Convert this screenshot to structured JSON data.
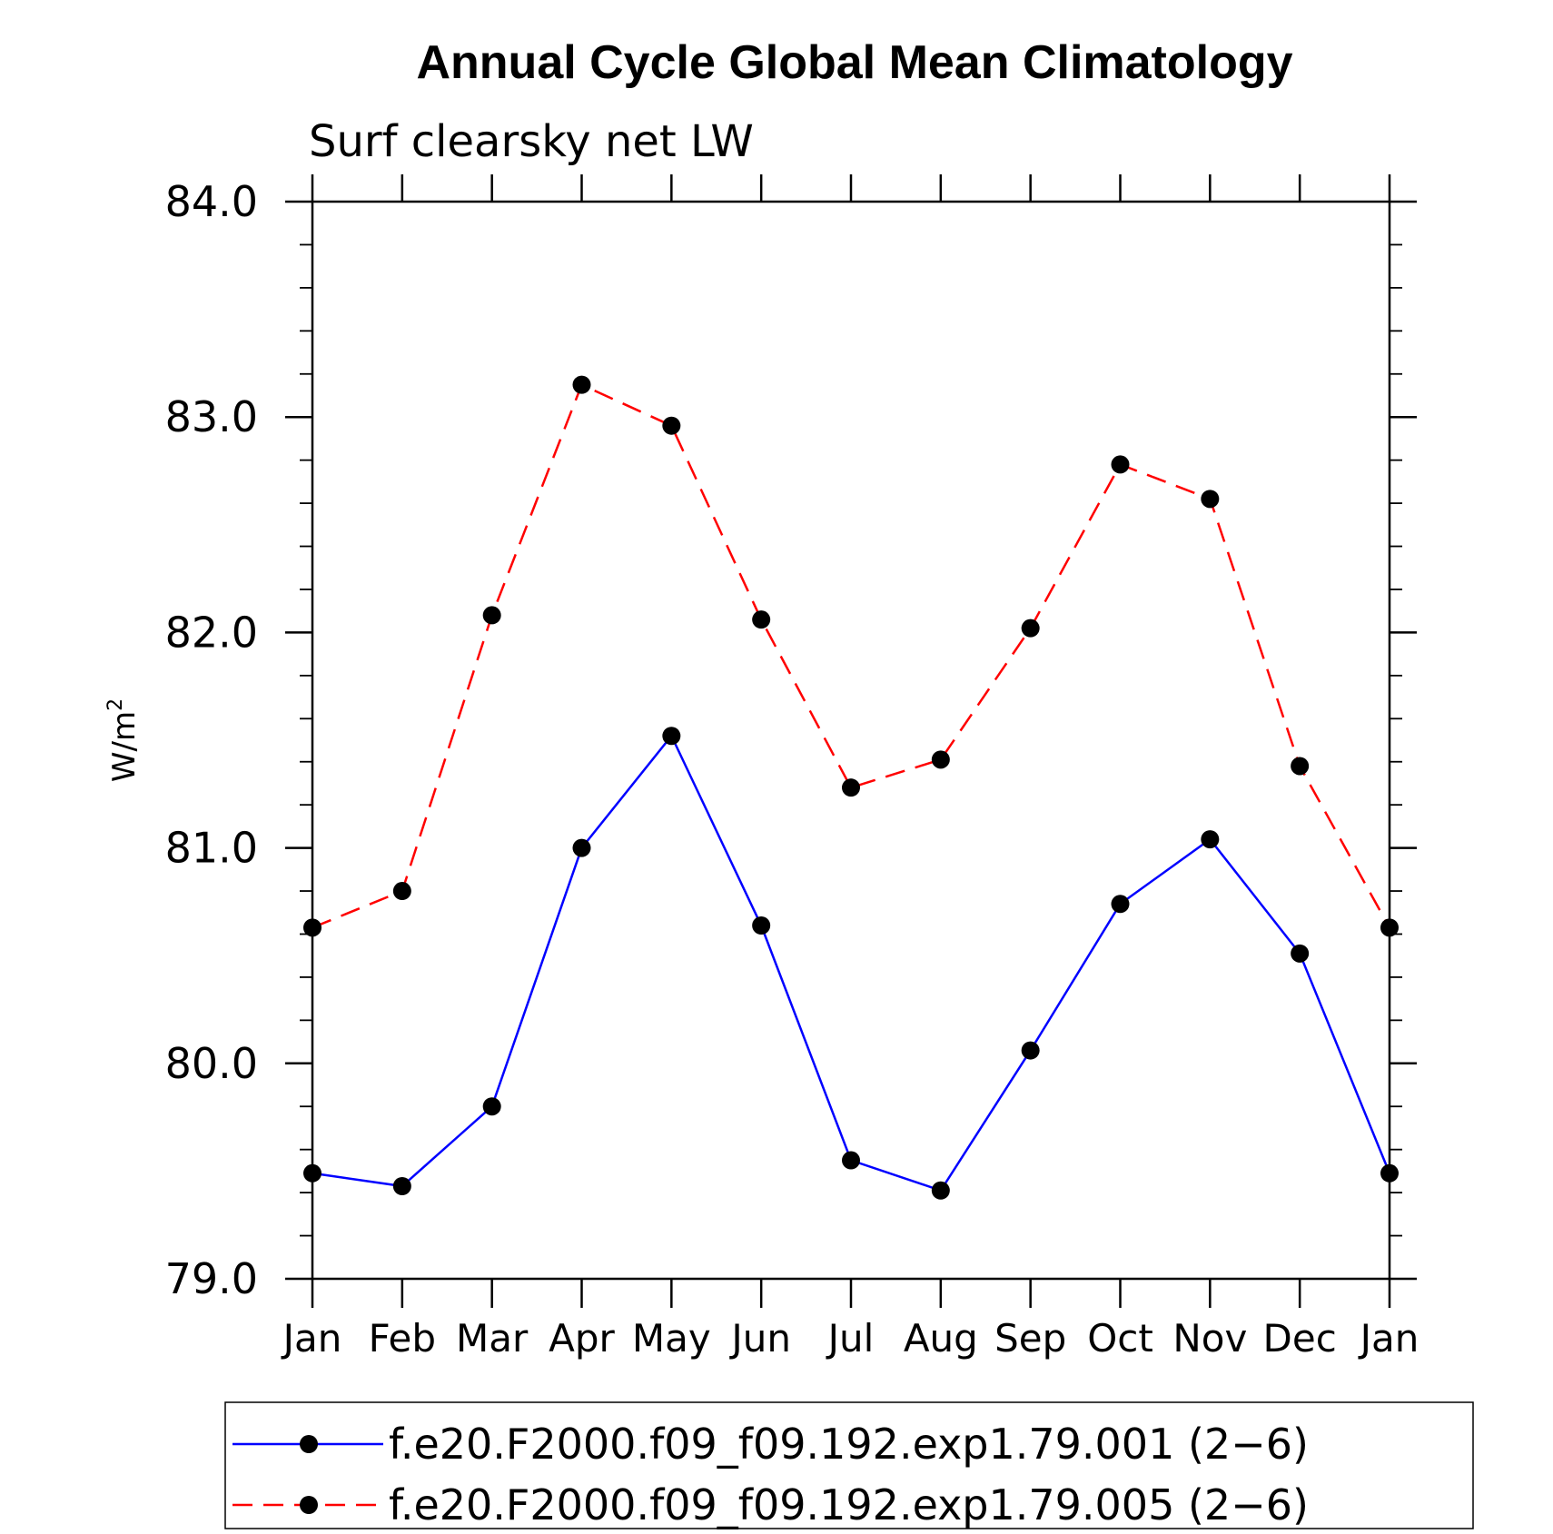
{
  "chart_data": {
    "type": "line",
    "title": "Annual Cycle Global Mean Climatology",
    "subtitle": "Surf clearsky net LW",
    "ylabel": "W/m",
    "ylabel_superscript": "2",
    "xlabel": "",
    "categories": [
      "Jan",
      "Feb",
      "Mar",
      "Apr",
      "May",
      "Jun",
      "Jul",
      "Aug",
      "Sep",
      "Oct",
      "Nov",
      "Dec",
      "Jan"
    ],
    "ylim": [
      79.0,
      84.0
    ],
    "yticks": [
      "79.0",
      "80.0",
      "81.0",
      "82.0",
      "83.0",
      "84.0"
    ],
    "grid": false,
    "legend_position": "bottom",
    "series": [
      {
        "name": "f.e20.F2000.f09_f09.192.exp1.79.001 (2−6)",
        "color": "#0000ff",
        "dash": "solid",
        "marker": "filled-circle",
        "values": [
          79.49,
          79.43,
          79.8,
          81.0,
          81.52,
          80.64,
          79.55,
          79.41,
          80.06,
          80.74,
          81.04,
          80.51,
          79.49
        ]
      },
      {
        "name": "f.e20.F2000.f09_f09.192.exp1.79.005 (2−6)",
        "color": "#ff0000",
        "dash": "dashed",
        "marker": "filled-circle",
        "values": [
          80.63,
          80.8,
          82.08,
          83.15,
          82.96,
          82.06,
          81.28,
          81.41,
          82.02,
          82.78,
          82.62,
          81.38,
          80.63
        ]
      }
    ]
  }
}
